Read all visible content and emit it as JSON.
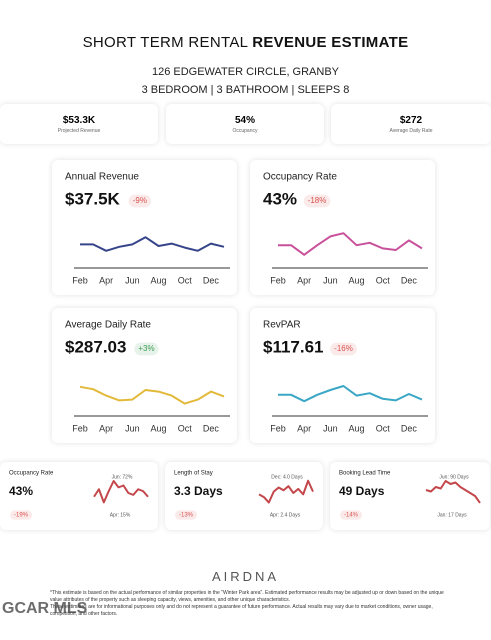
{
  "header": {
    "title_light": "SHORT TERM RENTAL",
    "title_bold": "REVENUE ESTIMATE",
    "address": "126 EDGEWATER CIRCLE, GRANBY",
    "details": "3 BEDROOM | 3 BATHROOM | SLEEPS 8"
  },
  "kpis": [
    {
      "value": "$53.3K",
      "label": "Projected Revenue"
    },
    {
      "value": "54%",
      "label": "Occupancy"
    },
    {
      "value": "$272",
      "label": "Average Daily Rate"
    }
  ],
  "chart_data": [
    {
      "type": "line",
      "title": "Annual Revenue",
      "headline": "$37.5K",
      "change": "-9%",
      "badge_color": "#d9534f",
      "color": "#36458a",
      "categories": [
        "Feb",
        null,
        "Apr",
        null,
        "Jun",
        null,
        "Aug",
        null,
        "Oct",
        null,
        "Dec",
        null
      ],
      "values": [
        22,
        22,
        14,
        19,
        22,
        31,
        20,
        23,
        18,
        14,
        23,
        19
      ],
      "ylim": [
        0,
        40
      ]
    },
    {
      "type": "line",
      "title": "Occupancy Rate",
      "headline": "43%",
      "change": "-18%",
      "badge_color": "#d9534f",
      "color": "#c9509b",
      "categories": [
        "Feb",
        null,
        "Apr",
        null,
        "Jun",
        null,
        "Aug",
        null,
        "Oct",
        null,
        "Dec",
        null
      ],
      "values": [
        21,
        21,
        9,
        21,
        32,
        36,
        21,
        24,
        17,
        15,
        27,
        17
      ],
      "ylim": [
        0,
        40
      ]
    },
    {
      "type": "line",
      "title": "Average Daily Rate",
      "headline": "$287.03",
      "change": "+3%",
      "badge_color": "#3a9a50",
      "color": "#e3b93a",
      "categories": [
        "Feb",
        null,
        "Apr",
        null,
        "Jun",
        null,
        "Aug",
        null,
        "Oct",
        null,
        "Dec",
        null
      ],
      "values": [
        29,
        26,
        18,
        12,
        13,
        25,
        23,
        18,
        8,
        13,
        23,
        17
      ],
      "ylim": [
        0,
        40
      ]
    },
    {
      "type": "line",
      "title": "RevPAR",
      "headline": "$117.61",
      "change": "-16%",
      "badge_color": "#d9534f",
      "color": "#3aa7c6",
      "categories": [
        "Feb",
        null,
        "Apr",
        null,
        "Jun",
        null,
        "Aug",
        null,
        "Oct",
        null,
        "Dec",
        null
      ],
      "values": [
        19,
        19,
        11,
        19,
        25,
        30,
        18,
        21,
        14,
        12,
        20,
        13
      ],
      "ylim": [
        0,
        40
      ]
    },
    {
      "type": "line",
      "title": "Occupancy Rate",
      "headline": "43%",
      "change": "-19%",
      "badge_color": "#d9534f",
      "color": "#c4474b",
      "values": [
        30,
        50,
        15,
        45,
        72,
        55,
        60,
        40,
        35,
        50,
        45,
        30
      ],
      "ylim": [
        0,
        80
      ],
      "annotations": [
        "Jun: 72%",
        "Apr: 15%"
      ]
    },
    {
      "type": "line",
      "title": "Length of Stay",
      "headline": "3.3 Days",
      "change": "-13%",
      "badge_color": "#d9534f",
      "color": "#c4474b",
      "values": [
        3.0,
        2.8,
        2.4,
        3.2,
        3.5,
        3.3,
        3.6,
        3.1,
        3.4,
        3.0,
        4.0,
        3.2
      ],
      "ylim": [
        2,
        4.2
      ],
      "annotations": [
        "Dec: 4.0 Days",
        "Apr: 2.4 Days"
      ]
    },
    {
      "type": "line",
      "title": "Booking Lead Time",
      "headline": "49 Days",
      "change": "-14%",
      "badge_color": "#d9534f",
      "color": "#c4474b",
      "values": [
        60,
        55,
        70,
        65,
        90,
        80,
        85,
        70,
        60,
        50,
        40,
        17
      ],
      "ylim": [
        0,
        100
      ],
      "annotations": [
        "Jun: 90 Days",
        "Jan: 17 Days"
      ]
    }
  ],
  "footer": {
    "logo": "AIRDNA",
    "disclaimer": [
      "*This estimate is based on the actual performance of similar properties in the \"Winter Park area\". Estimated performance results may be adjusted up or down based on the unique value attributes of the property such as sleeping capacity, views, amenities, and other unique characteristics.",
      "These estimates are for informational purposes only and do not represent a guarantee of future performance. Actual results may vary due to market conditions, owner usage, competition, and other factors."
    ],
    "watermark": "GCAR MLS"
  }
}
